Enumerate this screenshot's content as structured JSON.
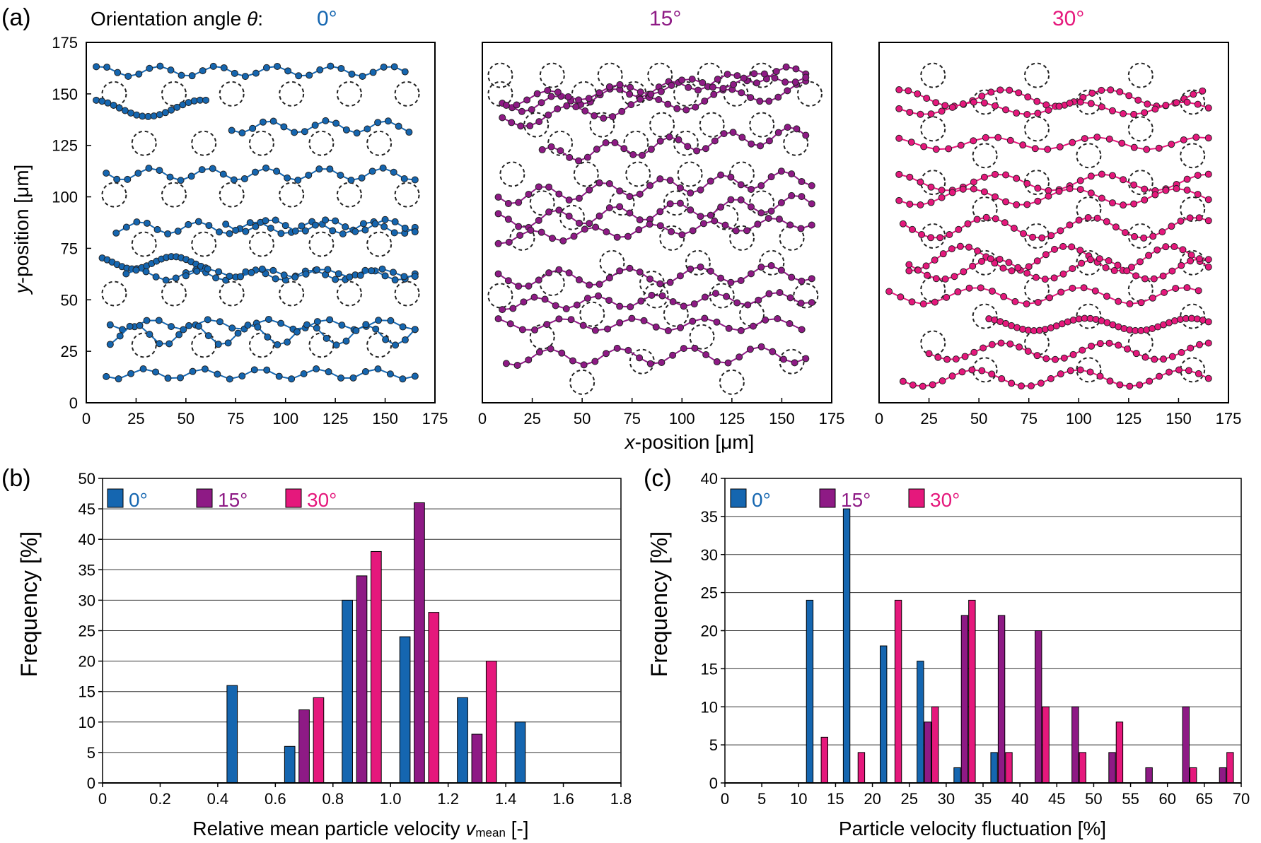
{
  "colors": {
    "c0": "#1566b0",
    "c15": "#8e1a85",
    "c30": "#e5187c",
    "grid": "#000000",
    "circle": "#222222"
  },
  "panel_a": {
    "label": "(a)",
    "header": "Orientation angle θ:",
    "header_prefix": "Orientation angle ",
    "header_theta": "θ",
    "header_colon": ":",
    "angle_labels": [
      "0°",
      "15°",
      "30°"
    ],
    "ylabel_italic": "y",
    "ylabel_rest": "-position [μm]",
    "xlabel_italic": "x",
    "xlabel_rest": "-position [μm]",
    "ticks": [
      "0",
      "25",
      "50",
      "75",
      "100",
      "125",
      "150",
      "175"
    ]
  },
  "panel_b": {
    "label": "(b)",
    "xlabel_main": "Relative mean particle velocity ",
    "xlabel_var": "v",
    "xlabel_sub": "mean",
    "xlabel_end": " [-]",
    "ylabel": "Frequency [%]",
    "legend": [
      "0°",
      "15°",
      "30°"
    ]
  },
  "panel_c": {
    "label": "(c)",
    "xlabel": "Particle velocity fluctuation [%]",
    "ylabel": "Frequency [%]",
    "legend": [
      "0°",
      "15°",
      "30°"
    ]
  },
  "chart_data": [
    {
      "type": "scatter",
      "title": "0°",
      "xlim": [
        0,
        175
      ],
      "ylim": [
        0,
        175
      ],
      "series_color": "#1566b0",
      "obstacle_rows": [
        {
          "y": 150,
          "x": [
            14,
            44,
            73,
            103,
            132,
            161
          ]
        },
        {
          "y": 126,
          "x": [
            29,
            59,
            88,
            118,
            147
          ]
        },
        {
          "y": 101,
          "x": [
            14,
            44,
            73,
            103,
            132,
            161
          ]
        },
        {
          "y": 77,
          "x": [
            29,
            59,
            88,
            118,
            147
          ]
        },
        {
          "y": 53,
          "x": [
            14,
            44,
            73,
            103,
            132,
            161
          ]
        },
        {
          "y": 28,
          "x": [
            29,
            59,
            88,
            118,
            147
          ]
        }
      ],
      "trajectories": [
        {
          "x0": 5,
          "x1": 160,
          "y": 161,
          "amp": 2.5,
          "period": 29,
          "phase": 0,
          "n": 30
        },
        {
          "x0": 5,
          "x1": 60,
          "y": 143,
          "amp": 4,
          "period": 55,
          "phase": 1.2,
          "n": 20
        },
        {
          "x0": 73,
          "x1": 162,
          "y": 134,
          "amp": 3,
          "period": 29,
          "phase": 0.5,
          "n": 18
        },
        {
          "x0": 10,
          "x1": 165,
          "y": 111,
          "amp": 3,
          "period": 29,
          "phase": 0.8,
          "n": 30
        },
        {
          "x0": 15,
          "x1": 165,
          "y": 85,
          "amp": 3,
          "period": 29,
          "phase": 2,
          "n": 30
        },
        {
          "x0": 70,
          "x1": 165,
          "y": 86,
          "amp": 3,
          "period": 29,
          "phase": 0.3,
          "n": 20
        },
        {
          "x0": 8,
          "x1": 60,
          "y": 68,
          "amp": 3,
          "period": 40,
          "phase": 1,
          "n": 22
        },
        {
          "x0": 20,
          "x1": 165,
          "y": 62,
          "amp": 2.5,
          "period": 29,
          "phase": 2.2,
          "n": 30
        },
        {
          "x0": 50,
          "x1": 165,
          "y": 63,
          "amp": 2,
          "period": 29,
          "phase": 1,
          "n": 22
        },
        {
          "x0": 12,
          "x1": 165,
          "y": 38,
          "amp": 2.5,
          "period": 29,
          "phase": 0.6,
          "n": 26
        },
        {
          "x0": 12,
          "x1": 165,
          "y": 33,
          "amp": 5,
          "period": 29,
          "phase": 2.5,
          "n": 32
        },
        {
          "x0": 10,
          "x1": 165,
          "y": 14,
          "amp": 2.5,
          "period": 29,
          "phase": 1.5,
          "n": 26
        }
      ]
    },
    {
      "type": "scatter",
      "title": "15°",
      "xlim": [
        0,
        175
      ],
      "ylim": [
        0,
        175
      ],
      "series_color": "#8e1a85",
      "obstacle_rows": [
        {
          "y": 159,
          "x": [
            9,
            35,
            64,
            89,
            114,
            140
          ]
        },
        {
          "y": 150,
          "x": [
            9,
            51,
            76,
            102,
            127,
            164
          ]
        },
        {
          "y": 135,
          "x": [
            27,
            60,
            90,
            115,
            140
          ]
        },
        {
          "y": 126,
          "x": [
            39,
            77,
            102,
            157
          ]
        },
        {
          "y": 111,
          "x": [
            15,
            52,
            78,
            104,
            130
          ]
        },
        {
          "y": 97,
          "x": [
            30,
            70,
            97,
            140
          ]
        },
        {
          "y": 90,
          "x": [
            45,
            122
          ]
        },
        {
          "y": 80,
          "x": [
            20,
            95,
            130,
            155
          ]
        },
        {
          "y": 68,
          "x": [
            65,
            108,
            145
          ]
        },
        {
          "y": 58,
          "x": [
            35,
            85
          ]
        },
        {
          "y": 52,
          "x": [
            9,
            87,
            120,
            162
          ]
        },
        {
          "y": 43,
          "x": [
            55,
            97,
            135
          ]
        },
        {
          "y": 32,
          "x": [
            30,
            110
          ]
        },
        {
          "y": 20,
          "x": [
            80,
            155
          ]
        },
        {
          "y": 10,
          "x": [
            50,
            125
          ]
        }
      ],
      "trajectories": [
        {
          "x0": 10,
          "x1": 162,
          "y": 143,
          "amp": 3,
          "period": 29,
          "phase": 0,
          "n": 32,
          "slope": 0.12
        },
        {
          "x0": 10,
          "x1": 162,
          "y": 137,
          "amp": 4,
          "period": 40,
          "phase": 1.2,
          "n": 34,
          "slope": 0.1
        },
        {
          "x0": 12,
          "x1": 162,
          "y": 147,
          "amp": 3,
          "period": 35,
          "phase": 2,
          "n": 30,
          "slope": 0.08
        },
        {
          "x0": 30,
          "x1": 162,
          "y": 120,
          "amp": 4,
          "period": 30,
          "phase": 0.8,
          "n": 30,
          "slope": 0.08
        },
        {
          "x0": 8,
          "x1": 165,
          "y": 100,
          "amp": 4,
          "period": 30,
          "phase": 1.5,
          "n": 32,
          "slope": 0.06
        },
        {
          "x0": 8,
          "x1": 165,
          "y": 88,
          "amp": 4,
          "period": 30,
          "phase": 0.2,
          "n": 32,
          "slope": 0.06
        },
        {
          "x0": 8,
          "x1": 165,
          "y": 80,
          "amp": 3,
          "period": 30,
          "phase": 2.6,
          "n": 30,
          "slope": 0.05
        },
        {
          "x0": 8,
          "x1": 165,
          "y": 60,
          "amp": 4,
          "period": 35,
          "phase": 1.0,
          "n": 32,
          "slope": 0.02
        },
        {
          "x0": 10,
          "x1": 165,
          "y": 48,
          "amp": 3,
          "period": 30,
          "phase": 2.2,
          "n": 30,
          "slope": 0.02
        },
        {
          "x0": 8,
          "x1": 160,
          "y": 38,
          "amp": 3,
          "period": 35,
          "phase": 0.5,
          "n": 26,
          "slope": 0
        },
        {
          "x0": 12,
          "x1": 162,
          "y": 22,
          "amp": 4,
          "period": 35,
          "phase": 1.8,
          "n": 28,
          "slope": 0.01
        }
      ]
    },
    {
      "type": "scatter",
      "title": "30°",
      "xlim": [
        0,
        175
      ],
      "ylim": [
        0,
        175
      ],
      "series_color": "#e5187c",
      "obstacle_rows": [
        {
          "y": 159,
          "x": [
            27,
            79,
            131
          ]
        },
        {
          "y": 146,
          "x": [
            53,
            105,
            157
          ]
        },
        {
          "y": 133,
          "x": [
            27,
            79,
            131
          ]
        },
        {
          "y": 120,
          "x": [
            53,
            105,
            157
          ]
        },
        {
          "y": 107,
          "x": [
            27,
            79,
            131
          ]
        },
        {
          "y": 94,
          "x": [
            53,
            105,
            157
          ]
        },
        {
          "y": 81,
          "x": [
            27,
            79,
            131
          ]
        },
        {
          "y": 68,
          "x": [
            53,
            105,
            157
          ]
        },
        {
          "y": 55,
          "x": [
            27,
            79,
            131
          ]
        },
        {
          "y": 42,
          "x": [
            53,
            105,
            157
          ]
        },
        {
          "y": 29,
          "x": [
            27,
            79,
            131
          ]
        },
        {
          "y": 16,
          "x": [
            53,
            105,
            157
          ]
        }
      ],
      "trajectories": [
        {
          "x0": 10,
          "x1": 162,
          "y": 148,
          "amp": 4,
          "period": 52,
          "phase": 0.3,
          "n": 34
        },
        {
          "x0": 10,
          "x1": 165,
          "y": 143,
          "amp": 3,
          "period": 52,
          "phase": 2,
          "n": 30
        },
        {
          "x0": 10,
          "x1": 165,
          "y": 126,
          "amp": 3,
          "period": 52,
          "phase": 1,
          "n": 26
        },
        {
          "x0": 10,
          "x1": 165,
          "y": 107,
          "amp": 4,
          "period": 52,
          "phase": 0.6,
          "n": 30
        },
        {
          "x0": 10,
          "x1": 165,
          "y": 100,
          "amp": 4,
          "period": 52,
          "phase": 2.4,
          "n": 30
        },
        {
          "x0": 12,
          "x1": 165,
          "y": 85,
          "amp": 5,
          "period": 52,
          "phase": 1.3,
          "n": 34
        },
        {
          "x0": 15,
          "x1": 165,
          "y": 70,
          "amp": 6,
          "period": 52,
          "phase": 2.8,
          "n": 36
        },
        {
          "x0": 15,
          "x1": 165,
          "y": 65,
          "amp": 5,
          "period": 52,
          "phase": 0.9,
          "n": 34
        },
        {
          "x0": 5,
          "x1": 160,
          "y": 52,
          "amp": 4,
          "period": 52,
          "phase": 2,
          "n": 28
        },
        {
          "x0": 55,
          "x1": 165,
          "y": 38,
          "amp": 3,
          "period": 52,
          "phase": 1.6,
          "n": 40
        },
        {
          "x0": 25,
          "x1": 165,
          "y": 25,
          "amp": 4,
          "period": 52,
          "phase": 0.4,
          "n": 32
        },
        {
          "x0": 12,
          "x1": 165,
          "y": 12,
          "amp": 4,
          "period": 52,
          "phase": 2.1,
          "n": 32
        }
      ]
    },
    {
      "type": "bar",
      "xlabel": "Relative mean particle velocity v_mean [-]",
      "ylabel": "Frequency [%]",
      "xlim": [
        0,
        1.8
      ],
      "ylim": [
        0,
        50
      ],
      "xticks": [
        "0",
        "0.2",
        "0.4",
        "0.6",
        "0.8",
        "1.0",
        "1.2",
        "1.4",
        "1.6",
        "1.8"
      ],
      "yticks": [
        "0",
        "5",
        "10",
        "15",
        "20",
        "25",
        "30",
        "35",
        "40",
        "45",
        "50"
      ],
      "bin_width": 0.2,
      "series": [
        {
          "name": "0°",
          "x": [
            0.45,
            0.65,
            0.85,
            1.05,
            1.25,
            1.45
          ],
          "values": [
            16,
            6,
            30,
            24,
            14,
            10
          ]
        },
        {
          "name": "15°",
          "x": [
            0.7,
            0.9,
            1.1,
            1.3
          ],
          "values": [
            12,
            34,
            46,
            8
          ]
        },
        {
          "name": "30°",
          "x": [
            0.75,
            0.95,
            1.15,
            1.35
          ],
          "values": [
            14,
            38,
            28,
            20
          ]
        }
      ]
    },
    {
      "type": "bar",
      "xlabel": "Particle velocity fluctuation [%]",
      "ylabel": "Frequency [%]",
      "xlim": [
        0,
        70
      ],
      "ylim": [
        0,
        40
      ],
      "xticks": [
        "0",
        "5",
        "10",
        "15",
        "20",
        "25",
        "30",
        "35",
        "40",
        "45",
        "50",
        "55",
        "60",
        "65",
        "70"
      ],
      "yticks": [
        "0",
        "5",
        "10",
        "15",
        "20",
        "25",
        "30",
        "35",
        "40"
      ],
      "bin_width": 5,
      "series": [
        {
          "name": "0°",
          "x": [
            11.5,
            16.5,
            21.5,
            26.5,
            31.5,
            36.5
          ],
          "values": [
            24,
            36,
            18,
            16,
            2,
            4
          ]
        },
        {
          "name": "15°",
          "x": [
            27.5,
            32.5,
            37.5,
            42.5,
            47.5,
            52.5,
            57.5,
            62.5,
            67.5
          ],
          "values": [
            8,
            22,
            22,
            20,
            10,
            4,
            2,
            10,
            2
          ]
        },
        {
          "name": "30°",
          "x": [
            13.5,
            18.5,
            23.5,
            28.5,
            33.5,
            38.5,
            43.5,
            48.5,
            53.5,
            63.5,
            68.5
          ],
          "values": [
            6,
            4,
            24,
            10,
            24,
            4,
            10,
            4,
            8,
            2,
            4
          ]
        }
      ]
    }
  ]
}
